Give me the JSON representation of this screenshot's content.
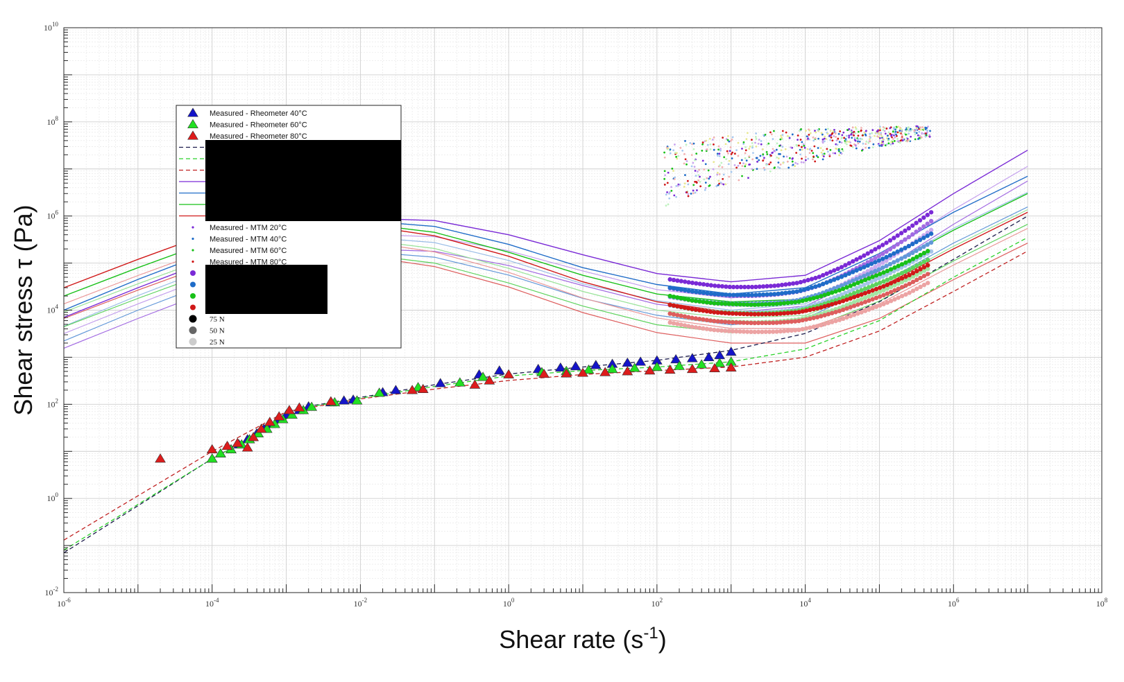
{
  "chart_data": {
    "type": "scatter",
    "title": "",
    "xlabel": "Shear rate (s",
    "xlabel_sup": "-1",
    "xlabel_suffix": ")",
    "ylabel": "Shear stress τ (Pa)",
    "x_scale": "log",
    "y_scale": "log",
    "xlim": [
      1e-06,
      100000000.0
    ],
    "ylim": [
      0.01,
      10000000000.0
    ],
    "grid": true,
    "legend_position": "upper-left",
    "x_ticks": [
      {
        "base": "10",
        "exp": "-6"
      },
      {
        "base": "10",
        "exp": "-4"
      },
      {
        "base": "10",
        "exp": "-2"
      },
      {
        "base": "10",
        "exp": "0"
      },
      {
        "base": "10",
        "exp": "2"
      },
      {
        "base": "10",
        "exp": "4"
      },
      {
        "base": "10",
        "exp": "6"
      },
      {
        "base": "10",
        "exp": "8"
      }
    ],
    "y_ticks": [
      {
        "base": "10",
        "exp": "-2"
      },
      {
        "base": "10",
        "exp": "0"
      },
      {
        "base": "10",
        "exp": "2"
      },
      {
        "base": "10",
        "exp": "4"
      },
      {
        "base": "10",
        "exp": "6"
      },
      {
        "base": "10",
        "exp": "8"
      },
      {
        "base": "10",
        "exp": "10"
      }
    ],
    "legend": [
      {
        "label": "Measured - Rheometer 40°C",
        "marker": "triangle",
        "color": "#1414c8"
      },
      {
        "label": "Measured - Rheometer 60°C",
        "marker": "triangle",
        "color": "#22e022"
      },
      {
        "label": "Measured - Rheometer 80°C",
        "marker": "triangle",
        "color": "#dd1c1c"
      },
      {
        "label": "",
        "marker": "dashed",
        "color": "#1a1a4a"
      },
      {
        "label": "",
        "marker": "dashed",
        "color": "#2ad22a"
      },
      {
        "label": "",
        "marker": "dashed",
        "color": "#c02020"
      },
      {
        "label": "",
        "marker": "line",
        "color": "#7a2ad6"
      },
      {
        "label": "",
        "marker": "line",
        "color": "#1f6cc8"
      },
      {
        "label": "",
        "marker": "line",
        "color": "#18c018"
      },
      {
        "label": "",
        "marker": "line",
        "color": "#d01818"
      },
      {
        "label": "Measured - MTM 20°C",
        "marker": "dot",
        "color": "#7a2ad6"
      },
      {
        "label": "Measured - MTM 40°C",
        "marker": "dot",
        "color": "#1f6cc8"
      },
      {
        "label": "Measured - MTM 60°C",
        "marker": "dot",
        "color": "#18c018"
      },
      {
        "label": "Measured - MTM 80°C",
        "marker": "dot",
        "color": "#d01818"
      },
      {
        "label": "",
        "marker": "star",
        "color": "#7a2ad6"
      },
      {
        "label": "",
        "marker": "star",
        "color": "#1f6cc8"
      },
      {
        "label": "",
        "marker": "star",
        "color": "#18c018"
      },
      {
        "label": "",
        "marker": "star",
        "color": "#d01818"
      },
      {
        "label": "75 N",
        "marker": "circle",
        "color": "#000000"
      },
      {
        "label": "50 N",
        "marker": "circle",
        "color": "#666666"
      },
      {
        "label": "25 N",
        "marker": "circle",
        "color": "#cccccc"
      }
    ],
    "rheometer_series": [
      {
        "name": "Measured - Rheometer 40°C",
        "color": "#1414c8",
        "x": [
          0.0001,
          0.00013,
          0.00018,
          0.00023,
          0.0003,
          0.0004,
          0.0005,
          0.0006,
          0.0008,
          0.001,
          0.0015,
          0.002,
          0.004,
          0.006,
          0.008,
          0.02,
          0.03,
          0.12,
          0.4,
          0.75,
          2.5,
          5,
          8,
          15,
          25,
          40,
          60,
          100,
          180,
          300,
          500,
          700,
          1000
        ],
        "y": [
          7,
          9,
          11,
          14,
          18,
          24,
          30,
          38,
          48,
          60,
          75,
          90,
          110,
          120,
          125,
          180,
          200,
          280,
          430,
          520,
          560,
          600,
          640,
          680,
          720,
          760,
          800,
          850,
          900,
          950,
          1000,
          1100,
          1300
        ]
      },
      {
        "name": "Measured - Rheometer 60°C",
        "color": "#22e022",
        "x": [
          0.0001,
          0.00013,
          0.00018,
          0.00025,
          0.00032,
          0.00042,
          0.00055,
          0.0007,
          0.0009,
          0.0012,
          0.0017,
          0.0022,
          0.0045,
          0.009,
          0.018,
          0.06,
          0.22,
          0.45,
          2.8,
          6,
          12,
          25,
          50,
          100,
          200,
          400,
          700,
          1000
        ],
        "y": [
          7,
          9,
          11,
          14,
          18,
          24,
          30,
          38,
          48,
          60,
          75,
          88,
          110,
          120,
          175,
          230,
          290,
          380,
          480,
          510,
          540,
          560,
          590,
          620,
          650,
          700,
          750,
          800
        ]
      },
      {
        "name": "Measured - Rheometer 80°C",
        "color": "#dd1c1c",
        "x": [
          2e-05,
          0.0001,
          0.00016,
          0.00022,
          0.0003,
          0.00036,
          0.00046,
          0.0006,
          0.0008,
          0.0011,
          0.0015,
          0.004,
          0.05,
          0.07,
          0.35,
          0.55,
          1.0,
          3,
          6,
          10,
          20,
          40,
          80,
          150,
          300,
          600,
          1000
        ],
        "y": [
          7,
          11,
          13,
          15,
          12,
          20,
          30,
          42,
          55,
          75,
          85,
          115,
          200,
          210,
          260,
          320,
          430,
          440,
          450,
          465,
          480,
          500,
          520,
          540,
          560,
          580,
          600
        ]
      }
    ],
    "rheometer_fits": [
      {
        "color": "#1a1a4a",
        "x": [
          1e-06,
          0.0001,
          0.002,
          0.01,
          0.1,
          1,
          10,
          100,
          1000,
          10000.0,
          100000.0,
          1000000.0,
          10000000.0
        ],
        "y": [
          0.07,
          7,
          90,
          140,
          260,
          440,
          620,
          860,
          1400,
          3200,
          15000,
          120000,
          1000000
        ]
      },
      {
        "color": "#2ad22a",
        "x": [
          1e-06,
          0.0001,
          0.002,
          0.01,
          0.1,
          1,
          10,
          100,
          1000,
          10000.0,
          100000.0,
          1000000.0,
          10000000.0
        ],
        "y": [
          0.08,
          7,
          88,
          135,
          240,
          400,
          520,
          620,
          800,
          1500,
          6000,
          50000,
          350000
        ]
      },
      {
        "color": "#c02020",
        "x": [
          1e-06,
          0.0001,
          0.001,
          0.01,
          0.1,
          1,
          10,
          100,
          1000,
          10000.0,
          100000.0,
          1000000.0,
          10000000.0
        ],
        "y": [
          0.13,
          10,
          70,
          130,
          210,
          320,
          430,
          520,
          620,
          1000,
          3600,
          25000,
          180000
        ]
      }
    ],
    "mtm_fits": [
      {
        "color": "#7a2ad6",
        "x": [
          1e-06,
          1e-05,
          0.0001,
          0.001,
          0.01,
          0.1,
          1,
          10,
          100,
          1000,
          10000.0,
          100000.0,
          1000000.0,
          10000000.0
        ],
        "y": [
          7000,
          30000,
          120000,
          400000,
          900000,
          800000,
          400000,
          150000,
          60000,
          40000,
          55000,
          300000,
          3000000,
          25000000
        ]
      },
      {
        "color": "#1f6cc8",
        "x": [
          1e-06,
          1e-05,
          0.0001,
          0.001,
          0.01,
          0.1,
          1,
          10,
          100,
          1000,
          10000.0,
          100000.0,
          1000000.0,
          10000000.0
        ],
        "y": [
          10000,
          45000,
          180000,
          550000,
          800000,
          600000,
          250000,
          80000,
          35000,
          22000,
          30000,
          160000,
          1200000,
          7000000
        ]
      },
      {
        "color": "#18c018",
        "x": [
          1e-06,
          1e-05,
          0.0001,
          0.001,
          0.01,
          0.1,
          1,
          10,
          100,
          1000,
          10000.0,
          100000.0,
          1000000.0,
          10000000.0
        ],
        "y": [
          20000,
          80000,
          300000,
          650000,
          700000,
          450000,
          170000,
          55000,
          22000,
          15000,
          17000,
          70000,
          500000,
          3000000
        ]
      },
      {
        "color": "#d01818",
        "x": [
          1e-06,
          1e-05,
          0.0001,
          0.001,
          0.01,
          0.1,
          1,
          10,
          100,
          1000,
          10000.0,
          100000.0,
          1000000.0,
          10000000.0
        ],
        "y": [
          30000,
          120000,
          450000,
          800000,
          650000,
          380000,
          140000,
          40000,
          15000,
          9000,
          9000,
          30000,
          200000,
          1200000
        ]
      }
    ],
    "mtm_stribeck": [
      {
        "name": "20°C",
        "color": "#7a2ad6",
        "x": [
          150,
          300,
          600,
          1000,
          2000,
          4000,
          8000,
          15000,
          30000,
          60000,
          120000,
          250000,
          500000
        ],
        "y": [
          45000,
          38000,
          33000,
          31000,
          31000,
          33000,
          38000,
          50000,
          80000,
          140000,
          260000,
          550000,
          1200000
        ]
      },
      {
        "name": "40°C",
        "color": "#1f6cc8",
        "x": [
          150,
          300,
          600,
          1000,
          2000,
          4000,
          8000,
          15000,
          30000,
          60000,
          120000,
          250000,
          500000
        ],
        "y": [
          30000,
          25000,
          22000,
          21000,
          21000,
          22000,
          25000,
          33000,
          50000,
          80000,
          130000,
          230000,
          420000
        ]
      },
      {
        "name": "60°C",
        "color": "#18c018",
        "x": [
          150,
          300,
          600,
          1000,
          2000,
          4000,
          8000,
          15000,
          30000,
          60000,
          120000,
          250000,
          450000
        ],
        "y": [
          20000,
          16000,
          14000,
          13500,
          13000,
          13500,
          15000,
          19000,
          27000,
          42000,
          65000,
          110000,
          180000
        ]
      },
      {
        "name": "80°C",
        "color": "#d01818",
        "x": [
          150,
          300,
          600,
          1000,
          2000,
          4000,
          8000,
          15000,
          30000,
          60000,
          120000,
          250000,
          450000
        ],
        "y": [
          13000,
          10500,
          9000,
          8500,
          8200,
          8300,
          9000,
          11000,
          15000,
          22000,
          33000,
          55000,
          90000
        ]
      }
    ],
    "mtm_scatter_cloud": {
      "x_range": [
        100,
        500000
      ],
      "y_range": [
        3000000,
        150000000
      ]
    }
  }
}
